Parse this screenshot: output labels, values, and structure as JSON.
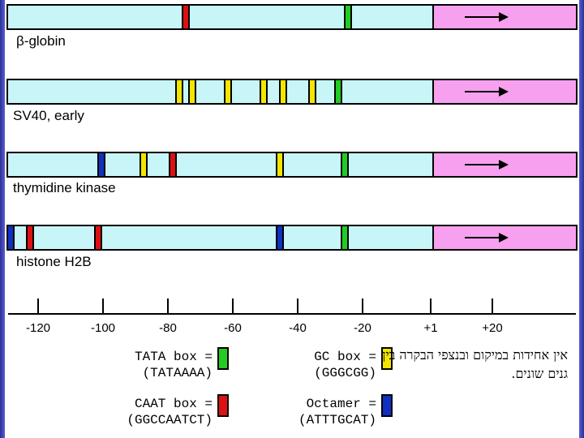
{
  "colors": {
    "tata": "#22cc22",
    "caat": "#dd1111",
    "gc": "#f2e600",
    "octamer": "#1030c0",
    "bar": "#c8f6f8",
    "transcript": "#f8a0f0"
  },
  "genes": [
    {
      "label": "β-globin",
      "boxes": [
        {
          "type": "caat",
          "pos": -75
        },
        {
          "type": "tata",
          "pos": -25
        }
      ]
    },
    {
      "label": "SV40, early",
      "boxes": [
        {
          "type": "gc",
          "pos": -77
        },
        {
          "type": "gc",
          "pos": -73
        },
        {
          "type": "gc",
          "pos": -62
        },
        {
          "type": "gc",
          "pos": -51
        },
        {
          "type": "gc",
          "pos": -45
        },
        {
          "type": "gc",
          "pos": -36
        },
        {
          "type": "tata",
          "pos": -28
        }
      ]
    },
    {
      "label": "thymidine kinase",
      "boxes": [
        {
          "type": "octamer",
          "pos": -101
        },
        {
          "type": "gc",
          "pos": -88
        },
        {
          "type": "caat",
          "pos": -79
        },
        {
          "type": "gc",
          "pos": -46
        },
        {
          "type": "tata",
          "pos": -26
        }
      ]
    },
    {
      "label": "histone H2B",
      "boxes": [
        {
          "type": "octamer",
          "pos": -129
        },
        {
          "type": "caat",
          "pos": -123
        },
        {
          "type": "caat",
          "pos": -102
        },
        {
          "type": "octamer",
          "pos": -46
        },
        {
          "type": "tata",
          "pos": -26
        }
      ]
    }
  ],
  "axis": {
    "ticks": [
      -120,
      -100,
      -80,
      -60,
      -40,
      -20,
      1,
      20
    ],
    "tick_labels": [
      "-120",
      "-100",
      "-80",
      "-60",
      "-40",
      "-20",
      "+1",
      "+20"
    ]
  },
  "legend": {
    "tata": "TATA box =\n(TATAAAA)",
    "caat": "CAAT box =\n(GGCCAATCT)",
    "gc": "GC box =\n(GGGCGG)",
    "octamer": "Octamer =\n(ATTTGCAT)"
  },
  "note": "אין אחידות במיקום ובנצפי הבקרה בין גנים שונים."
}
